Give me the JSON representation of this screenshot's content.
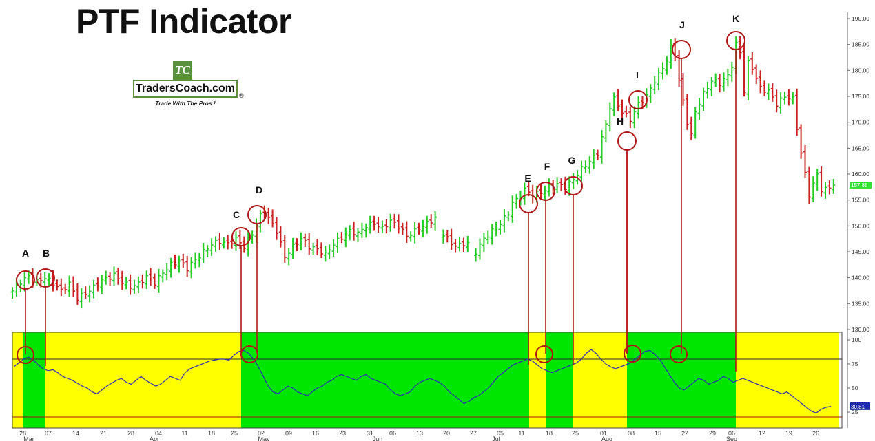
{
  "title": "PTF Indicator",
  "logo": {
    "mark": "TC",
    "name": "TradersCoach.com",
    "registered": "®",
    "tagline": "Trade With The Pros !"
  },
  "colors": {
    "up_bar": "#22cc22",
    "down_bar": "#cc1f1f",
    "signal": "#b01818",
    "zone_yellow": "#ffff00",
    "zone_green": "#00e600",
    "indicator_line": "#2b2bb8",
    "last_price_bg": "#33e033",
    "last_ind_bg": "#1b2ba6"
  },
  "chart_data": [
    {
      "type": "ohlc",
      "title": "",
      "y_range": [
        130,
        190
      ],
      "y_ticks": [
        "130.00",
        "135.00",
        "140.00",
        "145.00",
        "150.00",
        "155.00",
        "160.00",
        "165.00",
        "170.00",
        "175.00",
        "180.00",
        "185.00",
        "190.00"
      ],
      "last_price": "157.88",
      "signal_labels": [
        "A",
        "B",
        "C",
        "D",
        "E",
        "F",
        "G",
        "H",
        "I",
        "J",
        "K"
      ],
      "price_keyframes": [
        [
          0,
          137.5
        ],
        [
          2,
          139.2
        ],
        [
          4,
          140.3
        ],
        [
          6,
          139.2
        ],
        [
          8,
          140.0
        ],
        [
          10,
          139.0
        ],
        [
          12,
          137.5
        ],
        [
          14,
          138.8
        ],
        [
          16,
          136.0
        ],
        [
          19,
          137.5
        ],
        [
          22,
          139.5
        ],
        [
          25,
          140.5
        ],
        [
          27,
          139.2
        ],
        [
          29,
          138.3
        ],
        [
          31,
          138.8
        ],
        [
          33,
          140.2
        ],
        [
          35,
          139.0
        ],
        [
          37,
          141.0
        ],
        [
          39,
          142.5
        ],
        [
          41,
          143.2
        ],
        [
          43,
          141.8
        ],
        [
          45,
          143.5
        ],
        [
          47,
          145.0
        ],
        [
          49,
          146.5
        ],
        [
          51,
          147.0
        ],
        [
          53,
          146.5
        ],
        [
          55,
          147.5
        ],
        [
          57,
          146.0
        ],
        [
          59,
          148.5
        ],
        [
          61,
          152.0
        ],
        [
          62,
          152.8
        ],
        [
          63,
          151.5
        ],
        [
          65,
          149.0
        ],
        [
          66,
          146.5
        ],
        [
          67,
          144.0
        ],
        [
          69,
          146.0
        ],
        [
          71,
          147.5
        ],
        [
          73,
          146.0
        ],
        [
          75,
          145.5
        ],
        [
          77,
          144.5
        ],
        [
          79,
          146.5
        ],
        [
          81,
          147.8
        ],
        [
          83,
          149.0
        ],
        [
          85,
          148.5
        ],
        [
          87,
          150.0
        ],
        [
          89,
          150.5
        ],
        [
          91,
          149.5
        ],
        [
          93,
          151.0
        ],
        [
          95,
          150.0
        ],
        [
          97,
          148.0
        ],
        [
          99,
          149.0
        ],
        [
          101,
          150.0
        ],
        [
          103,
          151.0
        ],
        [
          104,
          151.5
        ],
        [
          105,
          null
        ],
        [
          106,
          148.5
        ],
        [
          108,
          146.5
        ],
        [
          110,
          146.2
        ],
        [
          112,
          146.8
        ],
        [
          113,
          null
        ],
        [
          114,
          145.0
        ],
        [
          116,
          147.5
        ],
        [
          118,
          149.0
        ],
        [
          120,
          150.5
        ],
        [
          122,
          152.5
        ],
        [
          123,
          154.5
        ],
        [
          124,
          155.0
        ],
        [
          126,
          157.0
        ],
        [
          128,
          156.0
        ],
        [
          130,
          156.5
        ],
        [
          132,
          157.5
        ],
        [
          134,
          158.0
        ],
        [
          136,
          157.5
        ],
        [
          138,
          159.0
        ],
        [
          140,
          161.0
        ],
        [
          142,
          162.5
        ],
        [
          144,
          164.0
        ],
        [
          145,
          167.0
        ],
        [
          146,
          169.5
        ],
        [
          147,
          173.0
        ],
        [
          148,
          174.5
        ],
        [
          150,
          172.0
        ],
        [
          152,
          170.5
        ],
        [
          154,
          173.5
        ],
        [
          156,
          175.0
        ],
        [
          158,
          178.0
        ],
        [
          160,
          180.5
        ],
        [
          161,
          182.0
        ],
        [
          162,
          184.5
        ],
        [
          163,
          183.0
        ],
        [
          164,
          178.0
        ],
        [
          166,
          170.0
        ],
        [
          167,
          167.5
        ],
        [
          168,
          172.0
        ],
        [
          170,
          175.5
        ],
        [
          172,
          178.0
        ],
        [
          174,
          177.5
        ],
        [
          176,
          179.0
        ],
        [
          177,
          181.0
        ],
        [
          178,
          185.0
        ],
        [
          179,
          183.5
        ],
        [
          180,
          176.0
        ],
        [
          181,
          181.5
        ],
        [
          182,
          180.5
        ],
        [
          184,
          176.5
        ],
        [
          186,
          176.0
        ],
        [
          188,
          173.5
        ],
        [
          190,
          175.0
        ],
        [
          192,
          174.5
        ],
        [
          193,
          169.0
        ],
        [
          194,
          164.0
        ],
        [
          195,
          160.0
        ],
        [
          196,
          156.0
        ],
        [
          197,
          158.0
        ],
        [
          198,
          160.0
        ],
        [
          199,
          157.0
        ],
        [
          200,
          157.0
        ],
        [
          201,
          157.5
        ],
        [
          202,
          157.88
        ]
      ],
      "x_ticks": [
        "28",
        "07",
        "14",
        "21",
        "28",
        "04",
        "11",
        "18",
        "25",
        "02",
        "09",
        "16",
        "23",
        "31",
        "06",
        "13",
        "20",
        "27",
        "05",
        "11",
        "18",
        "25",
        "01",
        "08",
        "15",
        "22",
        "29",
        "06",
        "12",
        "19",
        "26"
      ],
      "month_labels": [
        "Mar",
        "Apr",
        "May",
        "Jun",
        "Jul",
        "Aug",
        "Sep"
      ]
    },
    {
      "type": "line",
      "title": "",
      "y_range": [
        0,
        100
      ],
      "y_ticks": [
        "25",
        "50",
        "75",
        "100"
      ],
      "upper_level": 80,
      "lower_level": 20,
      "last_value": "30.81",
      "zone_order": [
        "yellow",
        "green",
        "yellow",
        "green",
        "yellow",
        "green",
        "yellow",
        "green",
        "yellow",
        "green",
        "yellow"
      ],
      "zone_boundaries_bar": [
        0,
        2,
        6,
        44,
        109,
        112,
        117,
        134,
        154,
        201
      ],
      "series": [
        {
          "name": "",
          "values": [
            72,
            76,
            80,
            82,
            79,
            74,
            70,
            68,
            69,
            66,
            62,
            60,
            58,
            55,
            52,
            50,
            46,
            44,
            48,
            52,
            55,
            58,
            60,
            56,
            54,
            58,
            62,
            58,
            55,
            52,
            54,
            58,
            62,
            60,
            58,
            66,
            70,
            72,
            74,
            76,
            78,
            79,
            80,
            80,
            79,
            84,
            88,
            89,
            86,
            80,
            72,
            62,
            52,
            46,
            44,
            48,
            52,
            50,
            46,
            44,
            42,
            46,
            50,
            52,
            56,
            58,
            62,
            64,
            62,
            60,
            58,
            62,
            64,
            60,
            58,
            56,
            54,
            48,
            44,
            42,
            44,
            46,
            52,
            56,
            58,
            60,
            58,
            56,
            52,
            46,
            42,
            38,
            34,
            36,
            40,
            42,
            46,
            50,
            56,
            62,
            66,
            70,
            74,
            76,
            78,
            80,
            78,
            74,
            70,
            68,
            66,
            68,
            70,
            72,
            74,
            76,
            80,
            86,
            90,
            86,
            80,
            75,
            72,
            70,
            72,
            74,
            76,
            80,
            84,
            88,
            89,
            85,
            80,
            72,
            64,
            56,
            50,
            48,
            52,
            56,
            60,
            58,
            54,
            56,
            58,
            62,
            60,
            56,
            58,
            60,
            58,
            56,
            54,
            52,
            50,
            48,
            46,
            44,
            46,
            42,
            38,
            34,
            30,
            26,
            24,
            28,
            30,
            31
          ]
        }
      ]
    }
  ]
}
